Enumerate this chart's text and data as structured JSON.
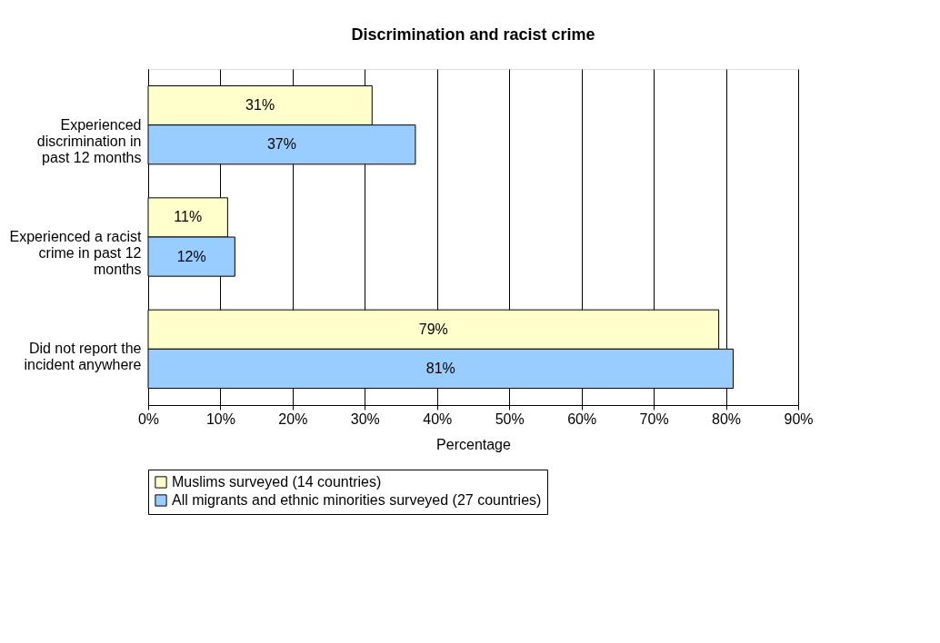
{
  "chart_data": {
    "type": "bar",
    "orientation": "horizontal",
    "title": "Discrimination and racist crime",
    "xlabel": "Percentage",
    "categories": [
      "Experienced discrimination in past 12 months",
      "Experienced a racist crime in past 12 months",
      "Did not report the incident anywhere"
    ],
    "series": [
      {
        "name": "Muslims surveyed (14 countries)",
        "color": "#ffffcc",
        "values": [
          31,
          11,
          79
        ],
        "value_labels": [
          "31%",
          "11%",
          "79%"
        ]
      },
      {
        "name": "All migrants and ethnic minorities surveyed (27 countries)",
        "color": "#99ccff",
        "values": [
          37,
          12,
          81
        ],
        "value_labels": [
          "37%",
          "12%",
          "81%"
        ]
      }
    ],
    "xlim": [
      0,
      90
    ],
    "xticks": [
      {
        "value": 0,
        "label": "0%"
      },
      {
        "value": 10,
        "label": "10%"
      },
      {
        "value": 20,
        "label": "20%"
      },
      {
        "value": 30,
        "label": "30%"
      },
      {
        "value": 40,
        "label": "40%"
      },
      {
        "value": 50,
        "label": "50%"
      },
      {
        "value": 60,
        "label": "60%"
      },
      {
        "value": 70,
        "label": "70%"
      },
      {
        "value": 80,
        "label": "80%"
      },
      {
        "value": 90,
        "label": "90%"
      }
    ],
    "grid": "x",
    "legend": "bottom"
  }
}
